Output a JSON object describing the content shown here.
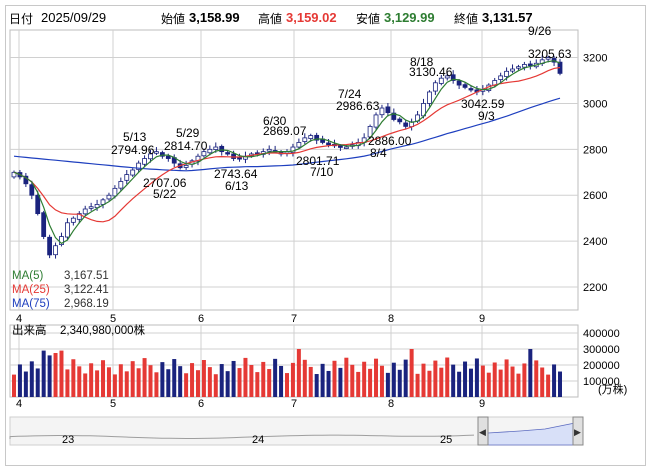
{
  "header": {
    "date_label": "日付",
    "date": "2025/09/29",
    "open_label": "始値",
    "open": "3,158.99",
    "high_label": "高値",
    "high": "3,159.02",
    "low_label": "安値",
    "low": "3,129.99",
    "close_label": "終値",
    "close": "3,131.57"
  },
  "colors": {
    "up_candle": "#ffffff",
    "down_candle": "#1a237e",
    "ma5": "#2e7d32",
    "ma25": "#e53935",
    "ma75": "#1e3fbf",
    "volume_up": "#e53935",
    "volume_down": "#1a237e",
    "grid": "#d0d0d0",
    "navigator_fill": "#d8e0f8"
  },
  "chart_data": [
    {
      "type": "candlestick",
      "title": "",
      "ylim": [
        2100,
        3320
      ],
      "y_ticks": [
        "3200",
        "3000",
        "2800",
        "2600",
        "2400",
        "2200"
      ],
      "x_month_labels": [
        "4",
        "5",
        "6",
        "7",
        "8",
        "9"
      ],
      "legend": [
        {
          "name": "MA(5)",
          "value": "3,167.51",
          "color": "#2e7d32"
        },
        {
          "name": "MA(25)",
          "value": "3,122.41",
          "color": "#e53935"
        },
        {
          "name": "MA(75)",
          "value": "2,968.19",
          "color": "#1e3fbf"
        }
      ],
      "annotations": [
        {
          "date": "5/13",
          "value": "2794.96",
          "kind": "high"
        },
        {
          "date": "5/29",
          "value": "2814.70",
          "kind": "high"
        },
        {
          "date": "6/30",
          "value": "2869.07",
          "kind": "high"
        },
        {
          "date": "7/24",
          "value": "2986.63",
          "kind": "high"
        },
        {
          "date": "8/18",
          "value": "3130.46",
          "kind": "high"
        },
        {
          "date": "9/26",
          "value": "3205.63",
          "kind": "high"
        },
        {
          "date": "5/22",
          "value": "2707.06",
          "kind": "low"
        },
        {
          "date": "6/13",
          "value": "2743.64",
          "kind": "low"
        },
        {
          "date": "7/10",
          "value": "2801.71",
          "kind": "low"
        },
        {
          "date": "8/4",
          "value": "2886.00",
          "kind": "low"
        },
        {
          "date": "9/3",
          "value": "3042.59",
          "kind": "low"
        }
      ],
      "series_close_approx": [
        2700,
        2680,
        2650,
        2600,
        2520,
        2420,
        2340,
        2380,
        2420,
        2480,
        2500,
        2520,
        2540,
        2550,
        2560,
        2580,
        2600,
        2630,
        2660,
        2690,
        2710,
        2740,
        2760,
        2780,
        2790,
        2770,
        2760,
        2740,
        2720,
        2730,
        2750,
        2770,
        2790,
        2800,
        2810,
        2790,
        2780,
        2760,
        2760,
        2770,
        2780,
        2780,
        2790,
        2800,
        2790,
        2780,
        2790,
        2810,
        2830,
        2850,
        2860,
        2840,
        2830,
        2820,
        2820,
        2810,
        2810,
        2820,
        2830,
        2850,
        2900,
        2950,
        2980,
        2960,
        2930,
        2920,
        2900,
        2920,
        2950,
        3000,
        3050,
        3090,
        3110,
        3120,
        3100,
        3080,
        3070,
        3060,
        3050,
        3060,
        3080,
        3100,
        3120,
        3140,
        3150,
        3160,
        3170,
        3165,
        3175,
        3190,
        3200,
        3180,
        3131
      ]
    },
    {
      "type": "bar",
      "title": "出来高",
      "legend_value": "2,340,980,000株",
      "unit": "(万株)",
      "ylim": [
        0,
        450000
      ],
      "y_ticks": [
        "400000",
        "300000",
        "200000",
        "100000"
      ],
      "x_month_labels": [
        "4",
        "5",
        "6",
        "7",
        "8",
        "9"
      ]
    }
  ],
  "navigator": {
    "labels": [
      "23",
      "24",
      "25"
    ],
    "left_handle": "◀",
    "right_handle": "▶"
  }
}
